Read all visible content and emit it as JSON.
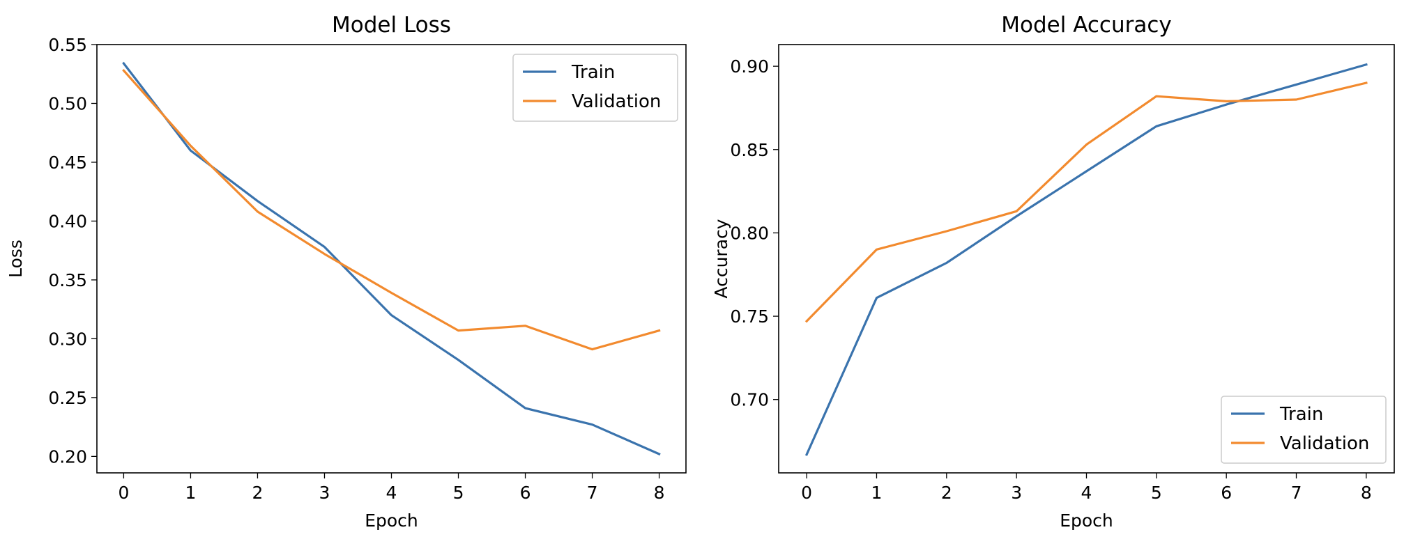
{
  "colors": {
    "train": "#3a73ad",
    "validation": "#f28a2e"
  },
  "chart_data": [
    {
      "type": "line",
      "title": "Model Loss",
      "xlabel": "Epoch",
      "ylabel": "Loss",
      "x": [
        0,
        1,
        2,
        3,
        4,
        5,
        6,
        7,
        8
      ],
      "xlim": [
        -0.4,
        8.4
      ],
      "ylim": [
        0.186,
        0.55
      ],
      "xticks": [
        0,
        1,
        2,
        3,
        4,
        5,
        6,
        7,
        8
      ],
      "yticks": [
        0.2,
        0.25,
        0.3,
        0.35,
        0.4,
        0.45,
        0.5,
        0.55
      ],
      "ytick_labels": [
        "0.20",
        "0.25",
        "0.30",
        "0.35",
        "0.40",
        "0.45",
        "0.50",
        "0.55"
      ],
      "legend": "top-right",
      "grid": false,
      "series": [
        {
          "name": "Train",
          "values": [
            0.534,
            0.46,
            0.417,
            0.378,
            0.32,
            0.282,
            0.241,
            0.227,
            0.202
          ]
        },
        {
          "name": "Validation",
          "values": [
            0.528,
            0.464,
            0.408,
            0.372,
            0.339,
            0.307,
            0.311,
            0.291,
            0.307
          ]
        }
      ]
    },
    {
      "type": "line",
      "title": "Model Accuracy",
      "xlabel": "Epoch",
      "ylabel": "Accuracy",
      "x": [
        0,
        1,
        2,
        3,
        4,
        5,
        6,
        7,
        8
      ],
      "xlim": [
        -0.4,
        8.4
      ],
      "ylim": [
        0.656,
        0.913
      ],
      "xticks": [
        0,
        1,
        2,
        3,
        4,
        5,
        6,
        7,
        8
      ],
      "yticks": [
        0.7,
        0.75,
        0.8,
        0.85,
        0.9
      ],
      "ytick_labels": [
        "0.70",
        "0.75",
        "0.80",
        "0.85",
        "0.90"
      ],
      "legend": "bottom-right",
      "grid": false,
      "series": [
        {
          "name": "Train",
          "values": [
            0.667,
            0.761,
            0.782,
            0.81,
            0.837,
            0.864,
            0.877,
            0.889,
            0.901
          ]
        },
        {
          "name": "Validation",
          "values": [
            0.747,
            0.79,
            0.801,
            0.813,
            0.853,
            0.882,
            0.879,
            0.88,
            0.89
          ]
        }
      ]
    }
  ]
}
